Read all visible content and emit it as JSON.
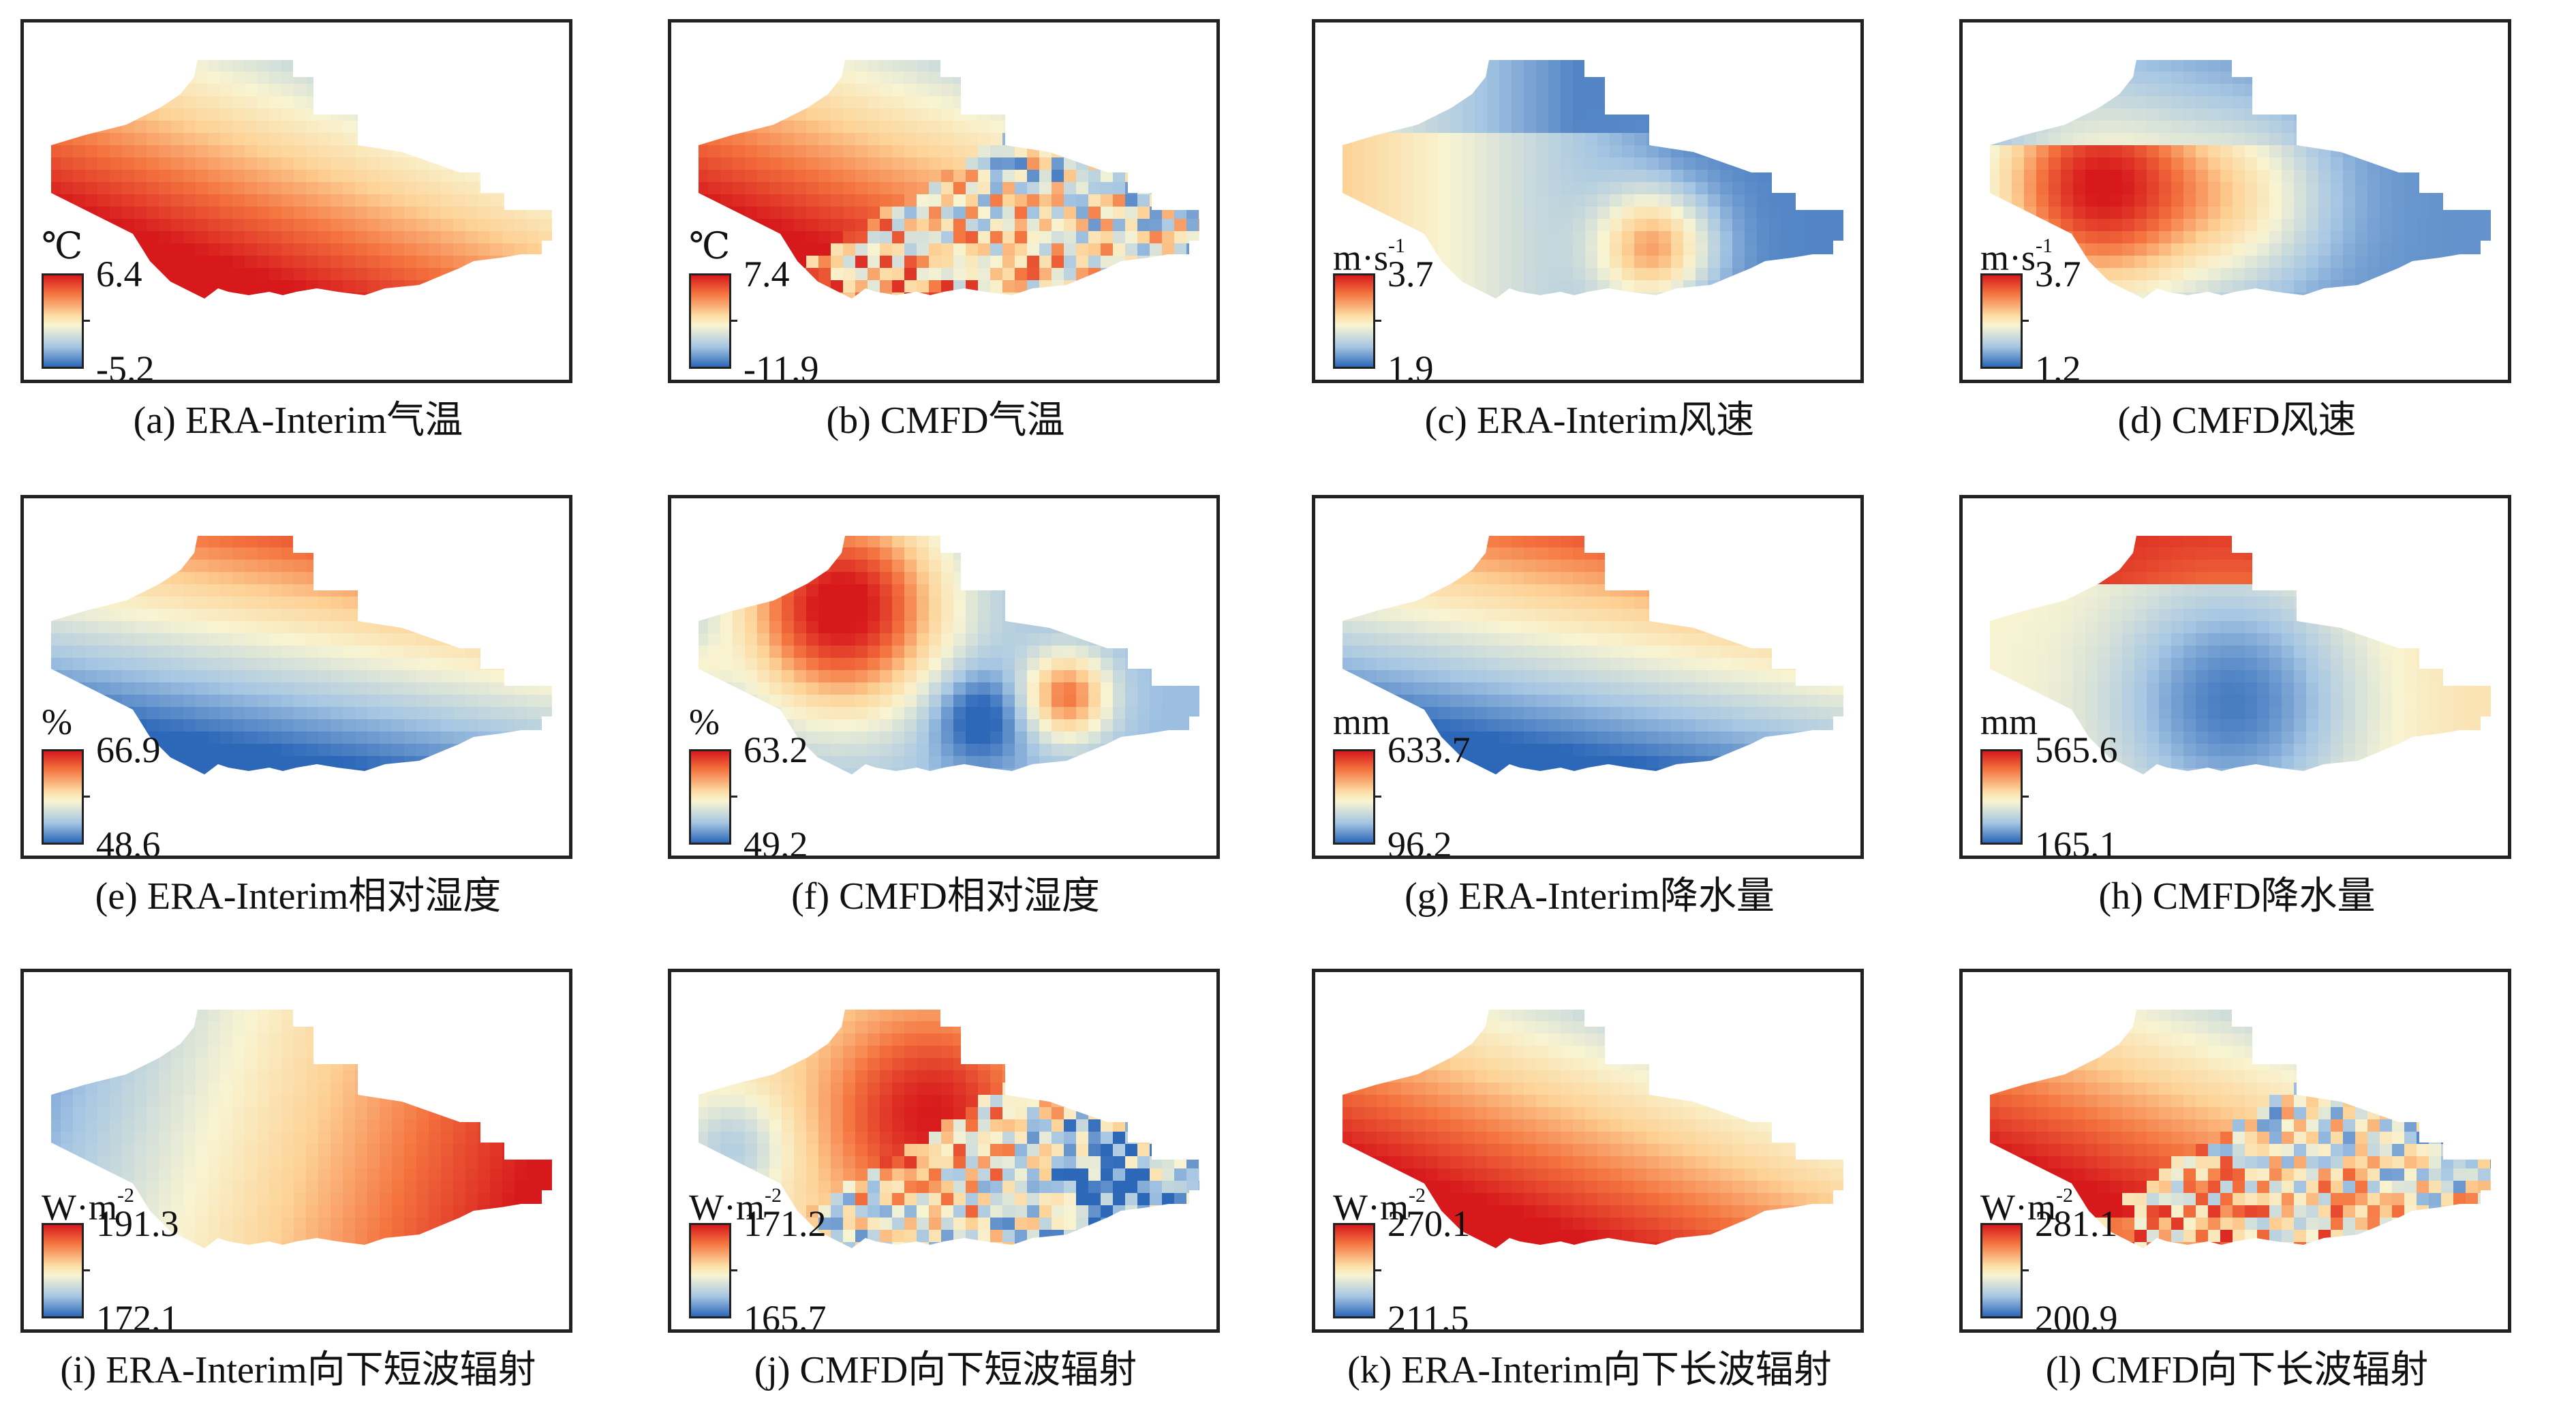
{
  "panels": [
    {
      "caption": "(a) ERA-Interim气温",
      "unit": "℃",
      "unit_sup": "",
      "max": "6.4",
      "min": "-5.2",
      "pattern": "diag_red_sw",
      "noise": false
    },
    {
      "caption": "(b) CMFD气温",
      "unit": "℃",
      "unit_sup": "",
      "max": "7.4",
      "min": "-11.9",
      "pattern": "diag_red_sw",
      "noise": true
    },
    {
      "caption": "(c) ERA-Interim风速",
      "unit": "m·s",
      "unit_sup": "-1",
      "max": "3.7",
      "min": "1.9",
      "pattern": "west_red",
      "noise": false
    },
    {
      "caption": "(d) CMFD风速",
      "unit": "m·s",
      "unit_sup": "-1",
      "max": "3.7",
      "min": "1.2",
      "pattern": "arc_red",
      "noise": false
    },
    {
      "caption": "(e) ERA-Interim相对湿度",
      "unit": "%",
      "unit_sup": "",
      "max": "66.9",
      "min": "48.6",
      "pattern": "diag_red_ne",
      "noise": false
    },
    {
      "caption": "(f) CMFD相对湿度",
      "unit": "%",
      "unit_sup": "",
      "max": "63.2",
      "min": "49.2",
      "pattern": "blobs",
      "noise": false
    },
    {
      "caption": "(g) ERA-Interim降水量",
      "unit": "mm",
      "unit_sup": "",
      "max": "633.7",
      "min": "96.2",
      "pattern": "diag_red_ne",
      "noise": false
    },
    {
      "caption": "(h) CMFD降水量",
      "unit": "mm",
      "unit_sup": "",
      "max": "565.6",
      "min": "165.1",
      "pattern": "north_red_blue_band",
      "noise": false
    },
    {
      "caption": "(i) ERA-Interim向下短波辐射",
      "unit": "W·m",
      "unit_sup": "-2",
      "max": "191.3",
      "min": "172.1",
      "pattern": "east_red",
      "noise": false
    },
    {
      "caption": "(j) CMFD向下短波辐射",
      "unit": "W·m",
      "unit_sup": "-2",
      "max": "171.2",
      "min": "165.7",
      "pattern": "swr_blobs",
      "noise": true
    },
    {
      "caption": "(k) ERA-Interim向下长波辐射",
      "unit": "W·m",
      "unit_sup": "-2",
      "max": "270.1",
      "min": "211.5",
      "pattern": "diag_red_sw",
      "noise": false
    },
    {
      "caption": "(l) CMFD向下长波辐射",
      "unit": "W·m",
      "unit_sup": "-2",
      "max": "281.1",
      "min": "200.9",
      "pattern": "diag_red_sw",
      "noise": true
    }
  ]
}
